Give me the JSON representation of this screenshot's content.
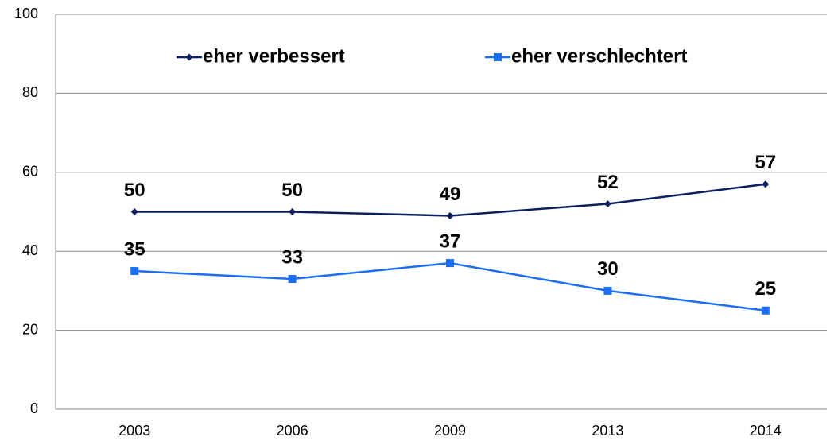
{
  "chart_data": {
    "type": "line",
    "categories": [
      "2003",
      "2006",
      "2009",
      "2013",
      "2014"
    ],
    "series": [
      {
        "name": "eher verbessert",
        "color": "#0d1f5c",
        "marker": "diamond",
        "values": [
          50,
          50,
          49,
          52,
          57
        ]
      },
      {
        "name": "eher verschlechtert",
        "color": "#1a6ef5",
        "marker": "square",
        "values": [
          35,
          33,
          37,
          30,
          25
        ]
      }
    ],
    "ylim": [
      0,
      100
    ],
    "yticks": [
      0,
      20,
      40,
      60,
      80,
      100
    ],
    "grid": true,
    "legend": "top"
  }
}
